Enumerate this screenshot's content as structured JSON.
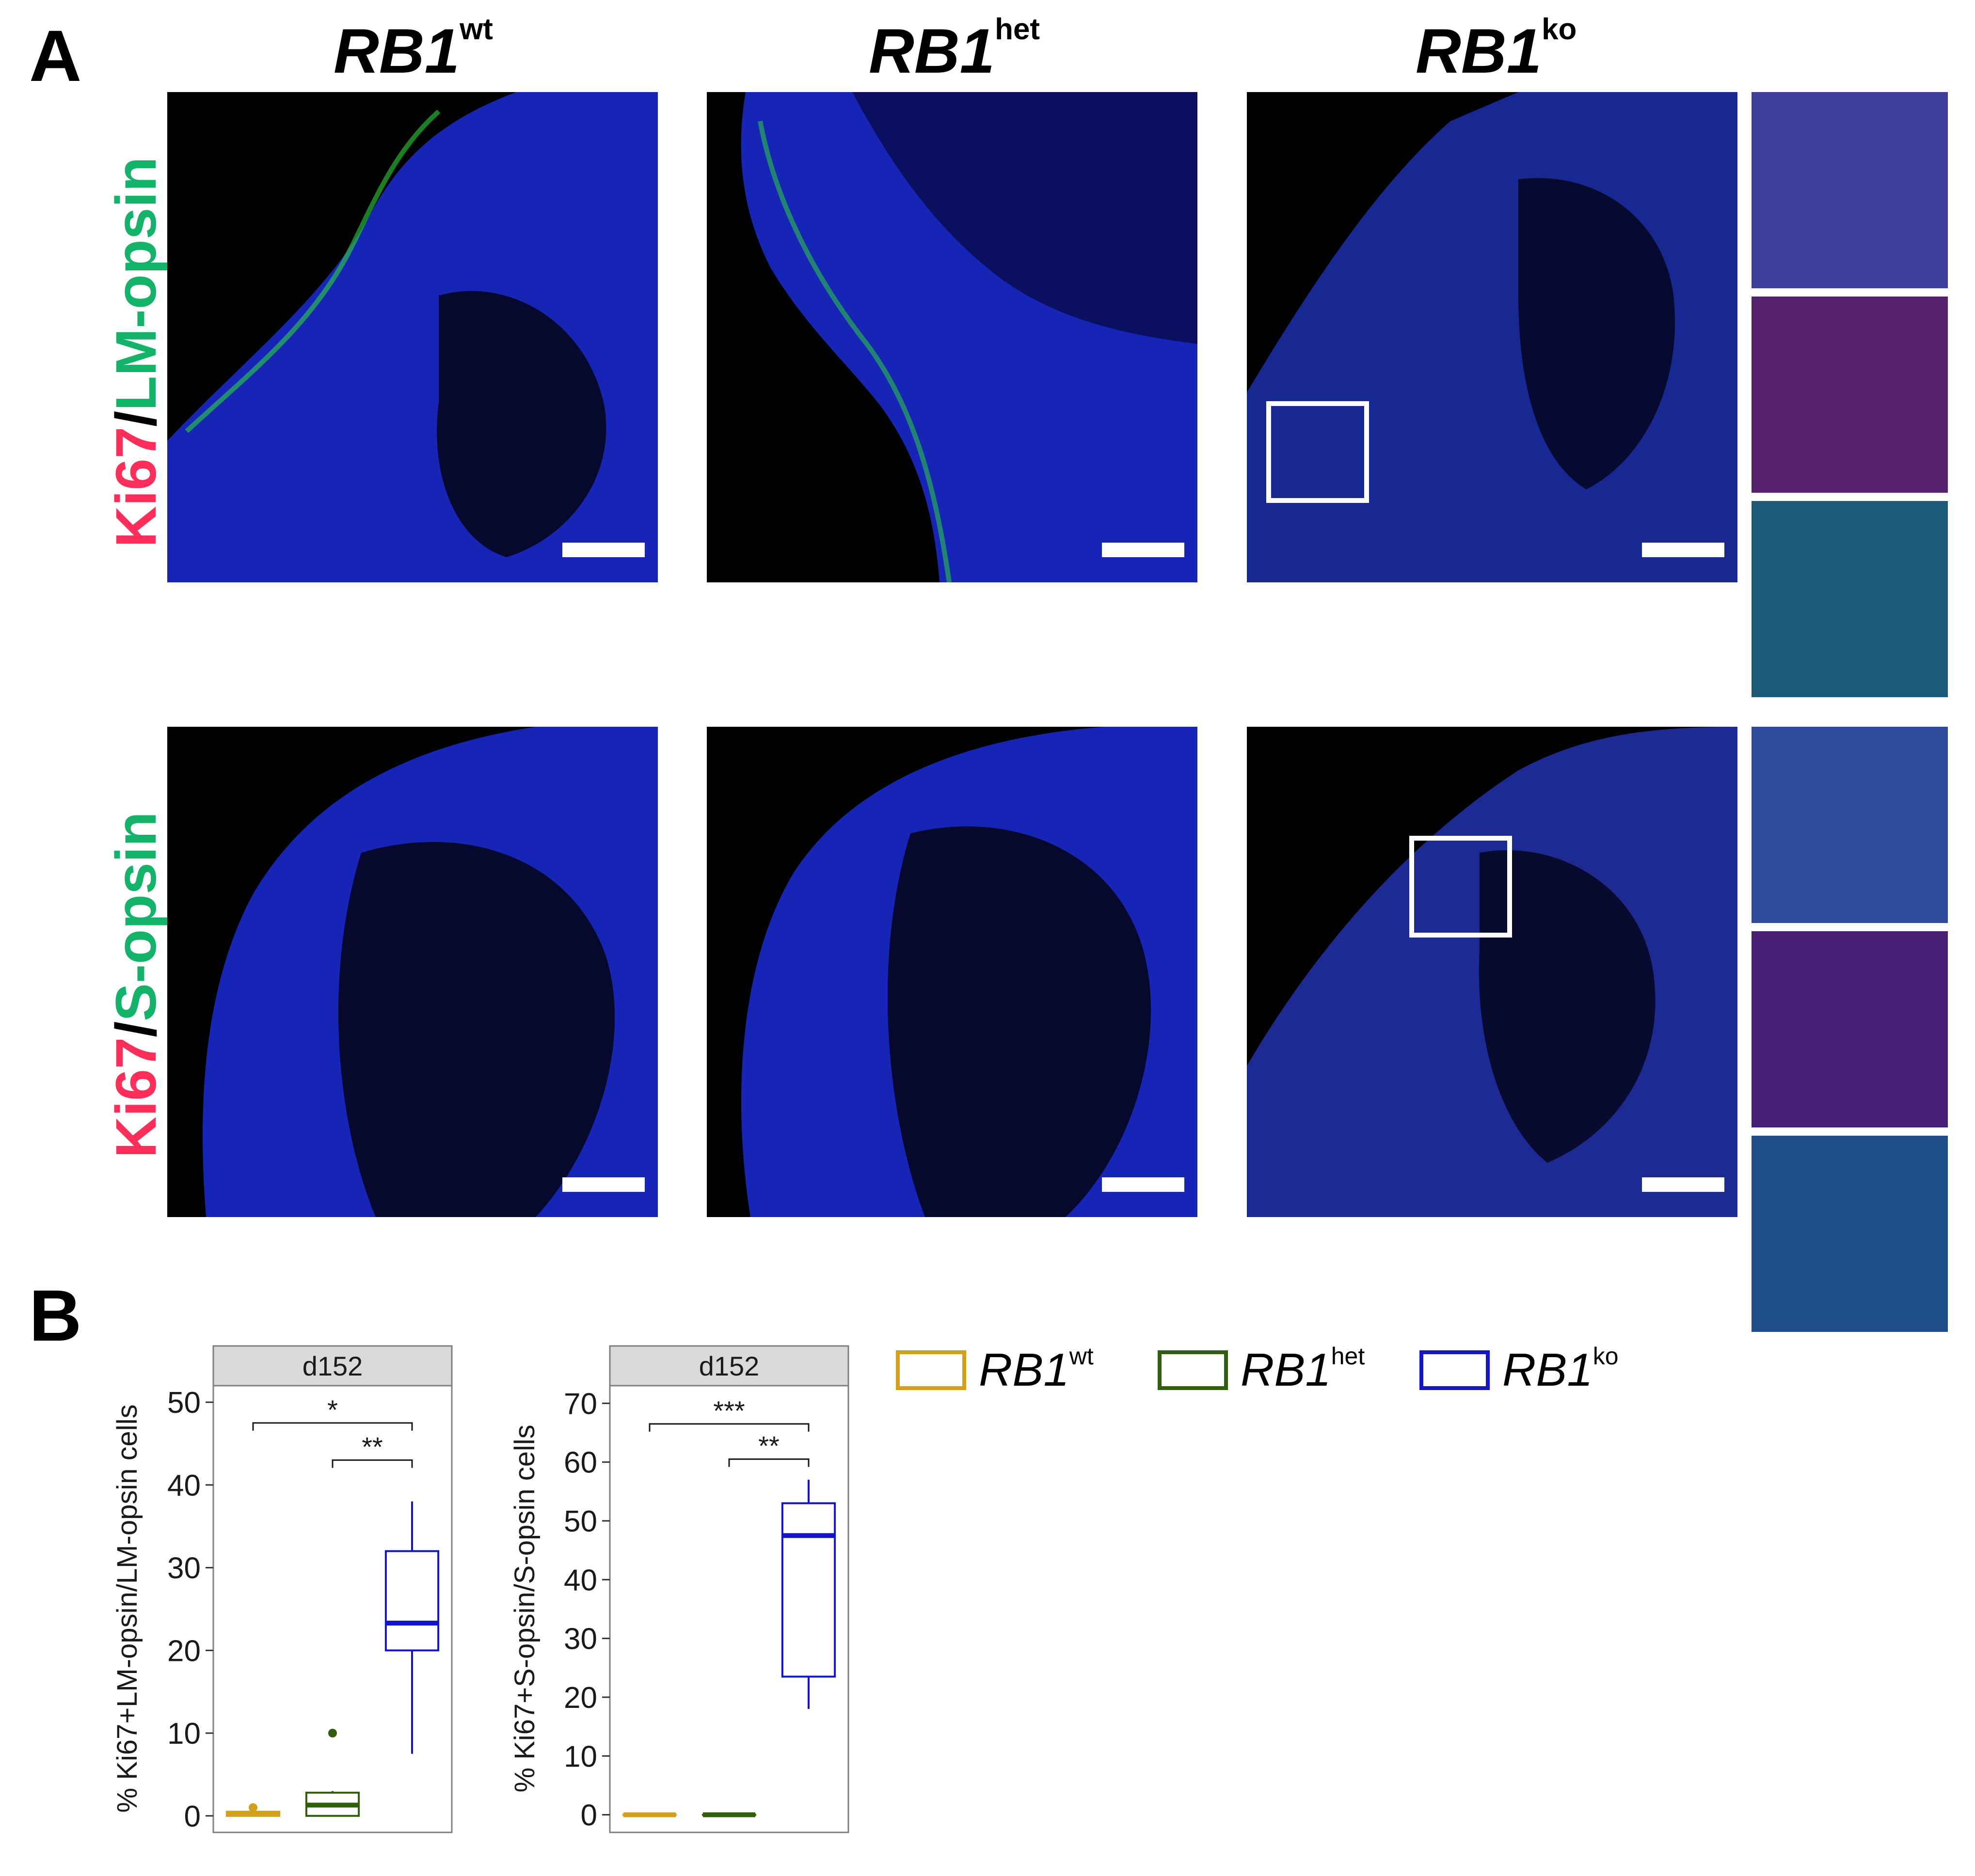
{
  "panel_a": {
    "letter": "A",
    "columns": [
      {
        "name": "RB1",
        "sup": "wt"
      },
      {
        "name": "RB1",
        "sup": "het"
      },
      {
        "name": "RB1",
        "sup": "ko"
      }
    ],
    "rows": [
      {
        "marker": "Ki67",
        "sep": "/",
        "target": "LM-opsin"
      },
      {
        "marker": "Ki67",
        "sep": "/",
        "target": "S-opsin"
      }
    ]
  },
  "panel_b": {
    "letter": "B",
    "legend": [
      {
        "name": "RB1",
        "sup": "wt",
        "color": "#d4a017"
      },
      {
        "name": "RB1",
        "sup": "het",
        "color": "#2e5e0e"
      },
      {
        "name": "RB1",
        "sup": "ko",
        "color": "#1414c8"
      }
    ]
  },
  "colors": {
    "wt": "#d4a017",
    "het": "#2e5e0e",
    "ko": "#1414c8",
    "ki67_label": "#ff2d5a",
    "opsin_label": "#13b36a",
    "nuclei": "#1a2cd6"
  },
  "chart_data": [
    {
      "type": "box",
      "facet": "d152",
      "ylabel": "% Ki67+LM-opsin/LM-opsin cells",
      "ylim": [
        -2,
        52
      ],
      "yticks": [
        0,
        10,
        20,
        30,
        40,
        50
      ],
      "groups": [
        {
          "name": "RB1wt",
          "color": "#d4a017",
          "min": 0,
          "q1": 0,
          "median": 0.3,
          "q3": 0.5,
          "max": 0.5,
          "outliers": [
            1.0
          ]
        },
        {
          "name": "RB1het",
          "color": "#2e5e0e",
          "min": 0,
          "q1": 0,
          "median": 1.3,
          "q3": 2.8,
          "max": 3.0,
          "outliers": [
            10.0
          ]
        },
        {
          "name": "RB1ko",
          "color": "#1414c8",
          "min": 7.5,
          "q1": 20,
          "median": 23.3,
          "q3": 32,
          "max": 38,
          "outliers": []
        }
      ],
      "significance": [
        {
          "from": 0,
          "to": 2,
          "y": 47.5,
          "label": "*"
        },
        {
          "from": 1,
          "to": 2,
          "y": 43.0,
          "label": "**"
        }
      ]
    },
    {
      "type": "box",
      "facet": "d152",
      "ylabel": "% Ki67+S-opsin/S-opsin cells",
      "ylim": [
        -3,
        73
      ],
      "yticks": [
        0,
        10,
        20,
        30,
        40,
        50,
        60,
        70
      ],
      "groups": [
        {
          "name": "RB1wt",
          "color": "#d4a017",
          "min": 0,
          "q1": 0,
          "median": 0,
          "q3": 0,
          "max": 0,
          "outliers": []
        },
        {
          "name": "RB1het",
          "color": "#2e5e0e",
          "min": 0,
          "q1": 0,
          "median": 0,
          "q3": 0,
          "max": 0,
          "outliers": []
        },
        {
          "name": "RB1ko",
          "color": "#1414c8",
          "min": 18,
          "q1": 23.5,
          "median": 47.5,
          "q3": 53,
          "max": 57,
          "outliers": []
        }
      ],
      "significance": [
        {
          "from": 0,
          "to": 2,
          "y": 66.5,
          "label": "***"
        },
        {
          "from": 1,
          "to": 2,
          "y": 60.5,
          "label": "**"
        }
      ]
    }
  ]
}
